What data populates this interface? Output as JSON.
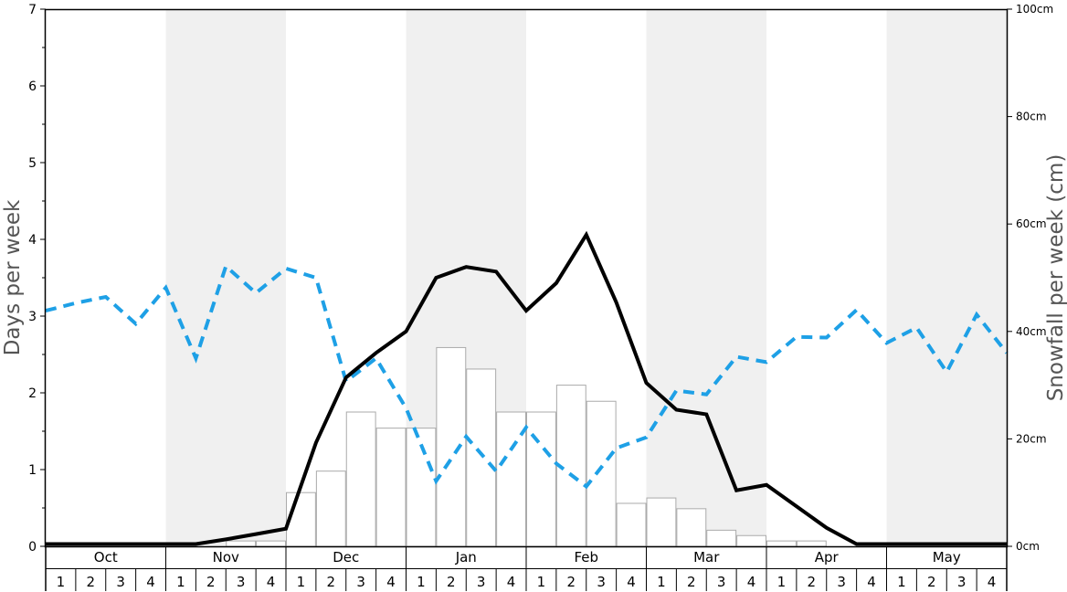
{
  "chart_data": {
    "type": "bar+line",
    "ylabel_left": "Days per week",
    "ylabel_right": "Snowfall per week (cm)",
    "left_ylim": [
      0,
      7
    ],
    "left_ticks": [
      "0",
      "1",
      "2",
      "3",
      "4",
      "5",
      "6",
      "7"
    ],
    "right_ylim": [
      0,
      100
    ],
    "right_ticks": [
      "0cm",
      "20cm",
      "40cm",
      "60cm",
      "80cm",
      "100cm"
    ],
    "months": [
      "Oct",
      "Nov",
      "Dec",
      "Jan",
      "Feb",
      "Mar",
      "Apr",
      "May"
    ],
    "week_labels": [
      "1",
      "2",
      "3",
      "4"
    ],
    "snowfall_cm": [
      0,
      0,
      0,
      0,
      0,
      0,
      1,
      1,
      10,
      14,
      25,
      22,
      22,
      37,
      33,
      25,
      25,
      30,
      27,
      8,
      9,
      7,
      3,
      2,
      1,
      1,
      0,
      0,
      0,
      0,
      0,
      0
    ],
    "days_line": [
      0.03,
      0.03,
      0.03,
      0.03,
      0.03,
      0.03,
      0.09,
      0.16,
      0.23,
      1.35,
      2.2,
      2.52,
      2.8,
      3.5,
      3.64,
      3.58,
      3.07,
      3.43,
      4.06,
      3.18,
      2.13,
      1.78,
      1.72,
      0.73,
      0.8,
      0.52,
      0.24,
      0.03,
      0.03,
      0.03,
      0.03,
      0.03,
      0.03
    ],
    "dashed_line": [
      3.07,
      3.17,
      3.25,
      2.9,
      3.37,
      2.45,
      3.65,
      3.3,
      3.62,
      3.5,
      2.15,
      2.45,
      1.8,
      0.85,
      1.43,
      0.98,
      1.55,
      1.08,
      0.78,
      1.28,
      1.42,
      2.03,
      1.98,
      2.47,
      2.4,
      2.73,
      2.72,
      3.08,
      2.65,
      2.85,
      2.27,
      3.02,
      2.52
    ],
    "colors": {
      "shade": "#f0f0f0",
      "bar_stroke": "#aaaaaa",
      "bar_fill": "#ffffff",
      "solid_line": "#000000",
      "dashed_line": "#1ea0e6"
    }
  }
}
